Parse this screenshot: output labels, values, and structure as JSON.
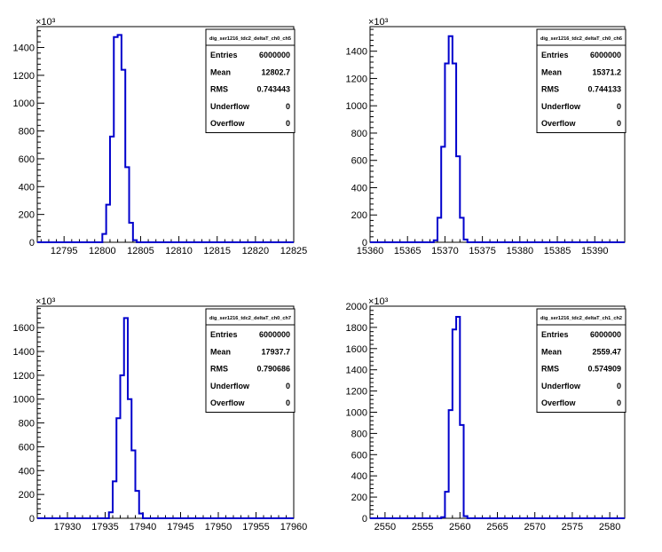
{
  "chart_data": [
    {
      "type": "histogram",
      "title": "dig_ser1216_tdc2_deltaT_ch0_ch5",
      "y_multiplier": "×10³",
      "xlim": [
        12791.5,
        12825.0
      ],
      "ylim": [
        0,
        1550
      ],
      "x_ticks": [
        12795,
        12800,
        12805,
        12810,
        12815,
        12820,
        12825
      ],
      "y_ticks": [
        0,
        200,
        400,
        600,
        800,
        1000,
        1200,
        1400
      ],
      "bin_width": 0.5,
      "bins": [
        {
          "x": 12800.0,
          "y": 60
        },
        {
          "x": 12800.5,
          "y": 270
        },
        {
          "x": 12801.0,
          "y": 760
        },
        {
          "x": 12801.5,
          "y": 1475
        },
        {
          "x": 12802.0,
          "y": 1490
        },
        {
          "x": 12802.5,
          "y": 1240
        },
        {
          "x": 12803.0,
          "y": 540
        },
        {
          "x": 12803.5,
          "y": 140
        },
        {
          "x": 12804.0,
          "y": 15
        }
      ],
      "stats": [
        {
          "label": "Entries",
          "value": "6000000"
        },
        {
          "label": "Mean",
          "value": "12802.7"
        },
        {
          "label": "RMS",
          "value": "0.743443"
        },
        {
          "label": "Underflow",
          "value": "0"
        },
        {
          "label": "Overflow",
          "value": "0"
        }
      ],
      "line_color": "#0000cc",
      "grid": false
    },
    {
      "type": "histogram",
      "title": "dig_ser1216_tdc2_deltaT_ch0_ch6",
      "y_multiplier": "×10³",
      "xlim": [
        15360.0,
        15394.0
      ],
      "ylim": [
        0,
        1580
      ],
      "x_ticks": [
        15360,
        15365,
        15370,
        15375,
        15380,
        15385,
        15390
      ],
      "y_ticks": [
        0,
        200,
        400,
        600,
        800,
        1000,
        1200,
        1400
      ],
      "bin_width": 0.5,
      "bins": [
        {
          "x": 15368.5,
          "y": 15
        },
        {
          "x": 15369.0,
          "y": 180
        },
        {
          "x": 15369.5,
          "y": 700
        },
        {
          "x": 15370.0,
          "y": 1310
        },
        {
          "x": 15370.5,
          "y": 1510
        },
        {
          "x": 15371.0,
          "y": 1310
        },
        {
          "x": 15371.5,
          "y": 630
        },
        {
          "x": 15372.0,
          "y": 180
        },
        {
          "x": 15372.5,
          "y": 20
        }
      ],
      "stats": [
        {
          "label": "Entries",
          "value": "6000000"
        },
        {
          "label": "Mean",
          "value": "15371.2"
        },
        {
          "label": "RMS",
          "value": "0.744133"
        },
        {
          "label": "Underflow",
          "value": "0"
        },
        {
          "label": "Overflow",
          "value": "0"
        }
      ],
      "line_color": "#0000cc",
      "grid": false
    },
    {
      "type": "histogram",
      "title": "dig_ser1216_tdc2_deltaT_ch0_ch7",
      "y_multiplier": "×10³",
      "xlim": [
        17926.0,
        17960.0
      ],
      "ylim": [
        0,
        1780
      ],
      "x_ticks": [
        17930,
        17935,
        17940,
        17945,
        17950,
        17955,
        17960
      ],
      "y_ticks": [
        0,
        200,
        400,
        600,
        800,
        1000,
        1200,
        1400,
        1600
      ],
      "bin_width": 0.5,
      "bins": [
        {
          "x": 17935.5,
          "y": 50
        },
        {
          "x": 17936.0,
          "y": 310
        },
        {
          "x": 17936.5,
          "y": 840
        },
        {
          "x": 17937.0,
          "y": 1200
        },
        {
          "x": 17937.5,
          "y": 1680
        },
        {
          "x": 17938.0,
          "y": 1000
        },
        {
          "x": 17938.5,
          "y": 570
        },
        {
          "x": 17939.0,
          "y": 230
        },
        {
          "x": 17939.5,
          "y": 40
        }
      ],
      "stats": [
        {
          "label": "Entries",
          "value": "6000000"
        },
        {
          "label": "Mean",
          "value": "17937.7"
        },
        {
          "label": "RMS",
          "value": "0.790686"
        },
        {
          "label": "Underflow",
          "value": "0"
        },
        {
          "label": "Overflow",
          "value": "0"
        }
      ],
      "line_color": "#0000cc",
      "grid": false
    },
    {
      "type": "histogram",
      "title": "dig_ser1216_tdc2_deltaT_ch1_ch2",
      "y_multiplier": "×10³",
      "xlim": [
        2548.0,
        2582.0
      ],
      "ylim": [
        0,
        2000
      ],
      "x_ticks": [
        2550,
        2555,
        2560,
        2565,
        2570,
        2575,
        2580
      ],
      "y_ticks": [
        0,
        200,
        400,
        600,
        800,
        1000,
        1200,
        1400,
        1600,
        1800,
        2000
      ],
      "bin_width": 0.5,
      "bins": [
        {
          "x": 2557.5,
          "y": 10
        },
        {
          "x": 2558.0,
          "y": 250
        },
        {
          "x": 2558.5,
          "y": 1020
        },
        {
          "x": 2559.0,
          "y": 1780
        },
        {
          "x": 2559.5,
          "y": 1900
        },
        {
          "x": 2560.0,
          "y": 880
        },
        {
          "x": 2560.5,
          "y": 20
        }
      ],
      "stats": [
        {
          "label": "Entries",
          "value": "6000000"
        },
        {
          "label": "Mean",
          "value": "2559.47"
        },
        {
          "label": "RMS",
          "value": "0.574909"
        },
        {
          "label": "Underflow",
          "value": "0"
        },
        {
          "label": "Overflow",
          "value": "0"
        }
      ],
      "line_color": "#0000cc",
      "grid": false
    }
  ]
}
